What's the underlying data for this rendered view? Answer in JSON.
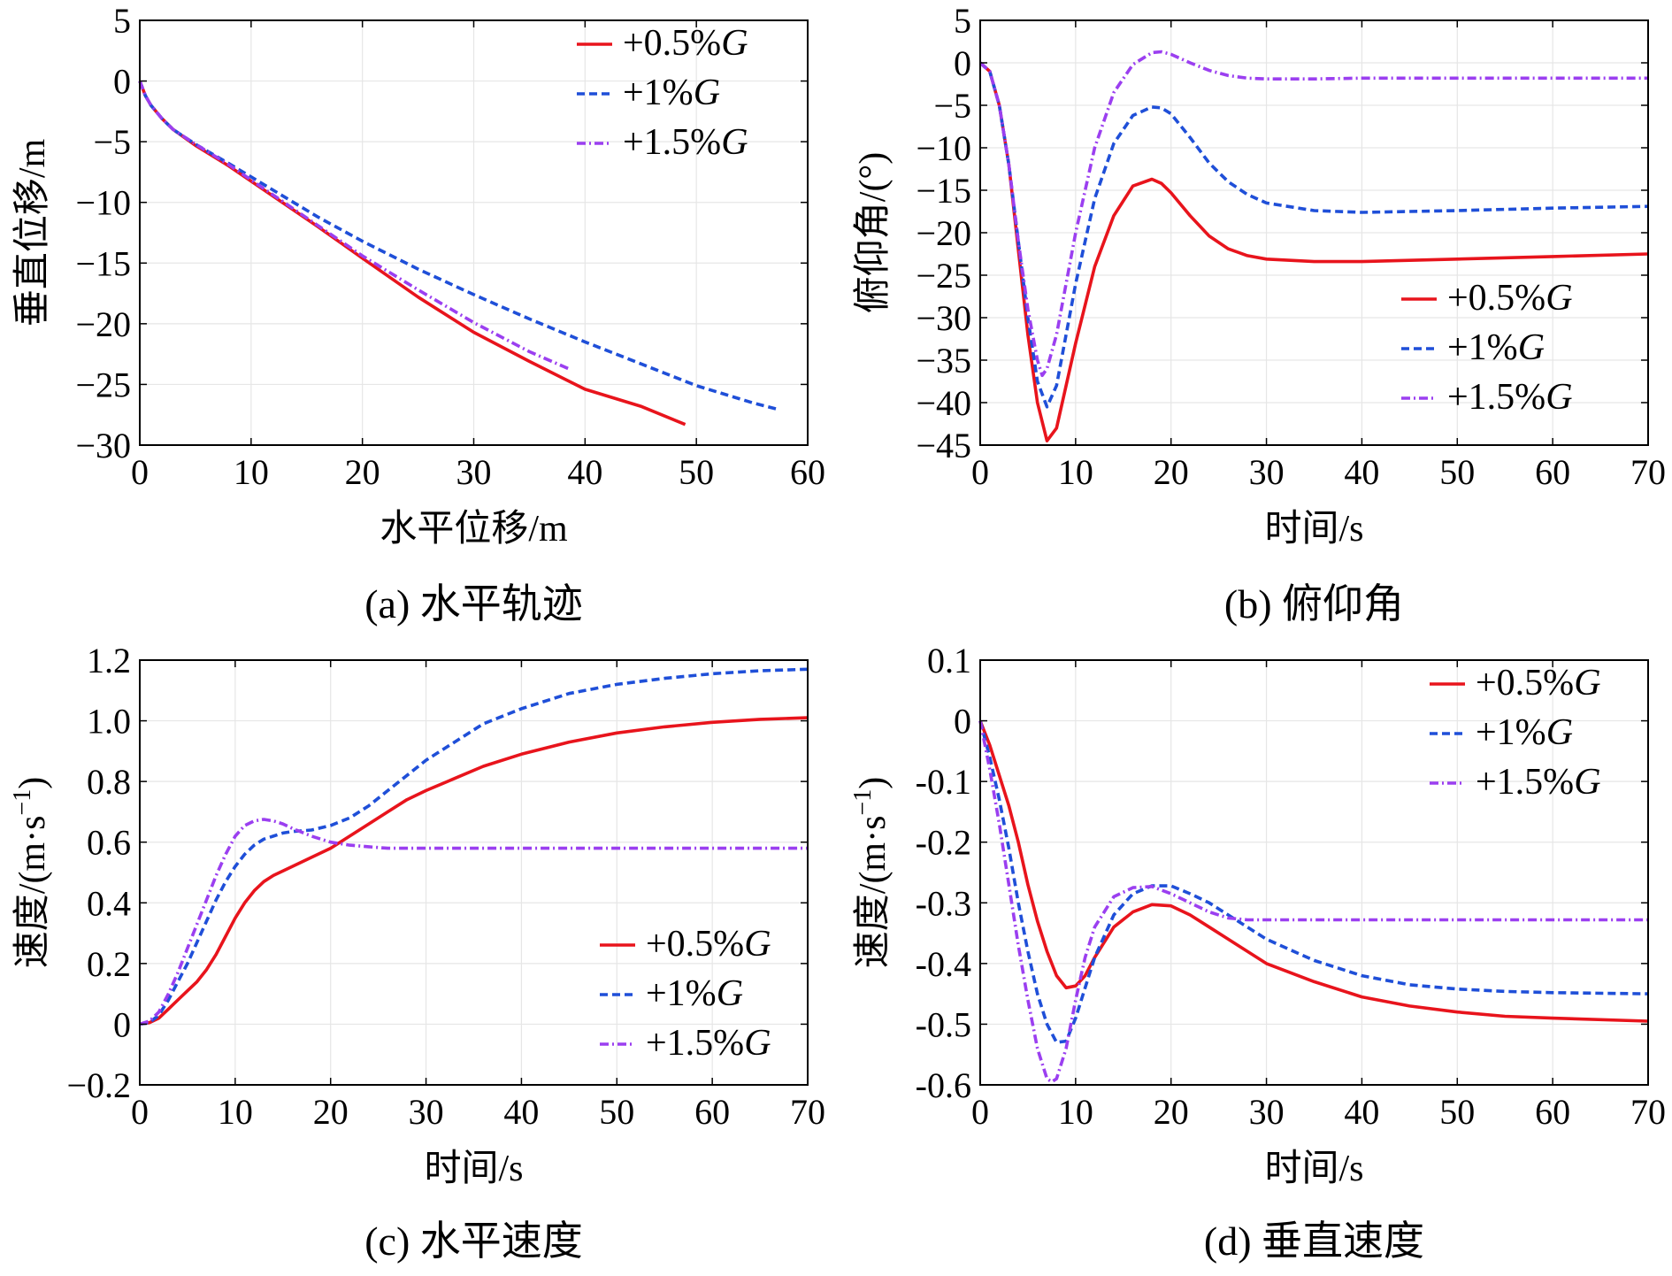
{
  "series_styles": {
    "s05": {
      "label": "+0.5%G",
      "color": "#e8141c"
    },
    "s1": {
      "label": "+1%G",
      "color": "#1f4fd8"
    },
    "s15": {
      "label": "+1.5%G",
      "color": "#9b3ff0"
    }
  },
  "chart_data": [
    {
      "id": "a",
      "type": "line",
      "caption": "(a) 水平轨迹",
      "xlabel": "水平位移/m",
      "ylabel": "垂直位移/m",
      "xlim": [
        0,
        60
      ],
      "ylim": [
        -30,
        5
      ],
      "xticks": [
        0,
        10,
        20,
        30,
        40,
        50,
        60
      ],
      "xtick_labels": [
        "0",
        "10",
        "20",
        "30",
        "40",
        "50",
        "60"
      ],
      "yticks": [
        5,
        0,
        -5,
        -10,
        -15,
        -20,
        -25,
        -30
      ],
      "ytick_labels": [
        "5",
        "0",
        "−5",
        "−10",
        "−15",
        "−20",
        "−25",
        "−30"
      ],
      "legend_position": "top-right",
      "series": [
        {
          "key": "s05",
          "name": "+0.5%G",
          "x": [
            0,
            0.5,
            1,
            2,
            3,
            5,
            8,
            12,
            16,
            20,
            25,
            30,
            35,
            40,
            45,
            49
          ],
          "y": [
            0,
            -1.2,
            -2,
            -3.1,
            -4,
            -5.3,
            -7,
            -9.5,
            -12,
            -14.6,
            -17.8,
            -20.7,
            -23.1,
            -25.4,
            -26.8,
            -28.3
          ]
        },
        {
          "key": "s1",
          "name": "+1%G",
          "x": [
            0,
            0.5,
            1,
            2,
            3,
            5,
            8,
            12,
            16,
            20,
            25,
            30,
            35,
            40,
            45,
            50,
            55,
            57.5
          ],
          "y": [
            0,
            -1.2,
            -2,
            -3.1,
            -4,
            -5.2,
            -6.8,
            -9,
            -11.2,
            -13.2,
            -15.5,
            -17.6,
            -19.6,
            -21.5,
            -23.3,
            -25.1,
            -26.5,
            -27.1
          ]
        },
        {
          "key": "s15",
          "name": "+1.5%G",
          "x": [
            0,
            0.5,
            1,
            2,
            3,
            5,
            8,
            12,
            16,
            20,
            25,
            30,
            35,
            38.5
          ],
          "y": [
            0,
            -1.2,
            -2,
            -3.1,
            -4,
            -5.2,
            -6.9,
            -9.4,
            -11.9,
            -14.4,
            -17.2,
            -19.9,
            -22.3,
            -23.7
          ]
        }
      ]
    },
    {
      "id": "b",
      "type": "line",
      "caption": "(b) 俯仰角",
      "xlabel": "时间/s",
      "ylabel": "俯仰角/(°)",
      "xlim": [
        0,
        70
      ],
      "ylim": [
        -45,
        5
      ],
      "xticks": [
        0,
        10,
        20,
        30,
        40,
        50,
        60,
        70
      ],
      "xtick_labels": [
        "0",
        "10",
        "20",
        "30",
        "40",
        "50",
        "60",
        "70"
      ],
      "yticks": [
        5,
        0,
        -5,
        -10,
        -15,
        -20,
        -25,
        -30,
        -35,
        -40,
        -45
      ],
      "ytick_labels": [
        "5",
        "0",
        "−5",
        "−10",
        "−15",
        "−20",
        "−25",
        "−30",
        "−35",
        "−40",
        "−45"
      ],
      "legend_position": "bottom-right",
      "series": [
        {
          "key": "s05",
          "name": "+0.5%G",
          "x": [
            0,
            1,
            2,
            3,
            4,
            5,
            6,
            7,
            8,
            9,
            10,
            12,
            14,
            16,
            18,
            19,
            20,
            22,
            24,
            26,
            28,
            30,
            35,
            40,
            50,
            60,
            70
          ],
          "y": [
            0,
            -1,
            -5,
            -12,
            -22,
            -32,
            -40,
            -44.5,
            -43,
            -38,
            -33,
            -24,
            -18,
            -14.5,
            -13.7,
            -14.2,
            -15.3,
            -18,
            -20.4,
            -21.9,
            -22.7,
            -23.1,
            -23.4,
            -23.4,
            -23.1,
            -22.8,
            -22.5
          ]
        },
        {
          "key": "s1",
          "name": "+1%G",
          "x": [
            0,
            1,
            2,
            3,
            4,
            5,
            6,
            7,
            8,
            9,
            10,
            12,
            14,
            16,
            18,
            19,
            20,
            22,
            24,
            26,
            28,
            30,
            35,
            40,
            50,
            60,
            70
          ],
          "y": [
            0,
            -1,
            -5,
            -12,
            -21,
            -30,
            -37.5,
            -40.5,
            -38,
            -32,
            -26,
            -16,
            -9.5,
            -6.2,
            -5.2,
            -5.3,
            -6,
            -8.8,
            -11.8,
            -14,
            -15.5,
            -16.5,
            -17.4,
            -17.6,
            -17.4,
            -17.1,
            -16.9
          ]
        },
        {
          "key": "s15",
          "name": "+1.5%G",
          "x": [
            0,
            1,
            2,
            3,
            4,
            5,
            6,
            6.5,
            7,
            8,
            9,
            10,
            12,
            14,
            16,
            18,
            19,
            20,
            22,
            24,
            26,
            28,
            30,
            35,
            40,
            50,
            60,
            70
          ],
          "y": [
            0,
            -1,
            -5,
            -12,
            -21,
            -29,
            -35,
            -36.8,
            -36,
            -32,
            -26,
            -20,
            -10,
            -3.5,
            -0.2,
            1.2,
            1.3,
            1,
            0,
            -0.9,
            -1.5,
            -1.8,
            -1.9,
            -1.9,
            -1.8,
            -1.8,
            -1.8,
            -1.8
          ]
        }
      ]
    },
    {
      "id": "c",
      "type": "line",
      "caption": "(c) 水平速度",
      "xlabel": "时间/s",
      "ylabel": "速度/(m·s",
      "ylabel_sup": "−1",
      "ylabel_end": ")",
      "xlim": [
        0,
        70
      ],
      "ylim": [
        -0.2,
        1.2
      ],
      "xticks": [
        0,
        10,
        20,
        30,
        40,
        50,
        60,
        70
      ],
      "xtick_labels": [
        "0",
        "10",
        "20",
        "30",
        "40",
        "50",
        "60",
        "70"
      ],
      "yticks": [
        1.2,
        1.0,
        0.8,
        0.6,
        0.4,
        0.2,
        0,
        -0.2
      ],
      "ytick_labels": [
        "1.2",
        "1.0",
        "0.8",
        "0.6",
        "0.4",
        "0.2",
        "0",
        "−0.2"
      ],
      "legend_position": "bottom-right",
      "series": [
        {
          "key": "s05",
          "name": "+0.5%G",
          "x": [
            0,
            1,
            2,
            3,
            4,
            5,
            6,
            7,
            8,
            9,
            10,
            11,
            12,
            13,
            14,
            15,
            16,
            18,
            20,
            22,
            24,
            26,
            28,
            30,
            33,
            36,
            40,
            45,
            50,
            55,
            60,
            65,
            70
          ],
          "y": [
            0,
            0.005,
            0.02,
            0.05,
            0.08,
            0.11,
            0.14,
            0.18,
            0.23,
            0.29,
            0.35,
            0.4,
            0.44,
            0.47,
            0.49,
            0.505,
            0.52,
            0.55,
            0.58,
            0.62,
            0.66,
            0.7,
            0.74,
            0.77,
            0.81,
            0.85,
            0.89,
            0.93,
            0.96,
            0.98,
            0.995,
            1.005,
            1.01
          ]
        },
        {
          "key": "s1",
          "name": "+1%G",
          "x": [
            0,
            1,
            2,
            3,
            4,
            5,
            6,
            7,
            8,
            9,
            10,
            11,
            12,
            13,
            14,
            15,
            16,
            18,
            20,
            22,
            24,
            26,
            28,
            30,
            33,
            36,
            40,
            45,
            50,
            55,
            60,
            65,
            70
          ],
          "y": [
            0,
            0.005,
            0.03,
            0.08,
            0.14,
            0.2,
            0.27,
            0.34,
            0.41,
            0.47,
            0.52,
            0.56,
            0.59,
            0.61,
            0.62,
            0.63,
            0.635,
            0.64,
            0.655,
            0.68,
            0.72,
            0.77,
            0.82,
            0.87,
            0.93,
            0.99,
            1.04,
            1.09,
            1.12,
            1.14,
            1.155,
            1.165,
            1.17
          ]
        },
        {
          "key": "s15",
          "name": "+1.5%G",
          "x": [
            0,
            1,
            2,
            3,
            4,
            5,
            6,
            7,
            8,
            9,
            10,
            11,
            12,
            13,
            14,
            15,
            16,
            18,
            20,
            22,
            24,
            26,
            28,
            30,
            35,
            40,
            50,
            60,
            70
          ],
          "y": [
            0,
            0.01,
            0.04,
            0.1,
            0.17,
            0.25,
            0.33,
            0.41,
            0.49,
            0.56,
            0.62,
            0.655,
            0.67,
            0.675,
            0.67,
            0.66,
            0.645,
            0.62,
            0.6,
            0.59,
            0.585,
            0.58,
            0.58,
            0.58,
            0.58,
            0.58,
            0.58,
            0.58,
            0.58
          ]
        }
      ]
    },
    {
      "id": "d",
      "type": "line",
      "caption": "(d) 垂直速度",
      "xlabel": "时间/s",
      "ylabel": "速度/(m·s",
      "ylabel_sup": "−1",
      "ylabel_end": ")",
      "xlim": [
        0,
        70
      ],
      "ylim": [
        -0.6,
        0.1
      ],
      "xticks": [
        0,
        10,
        20,
        30,
        40,
        50,
        60,
        70
      ],
      "xtick_labels": [
        "0",
        "10",
        "20",
        "30",
        "40",
        "50",
        "60",
        "70"
      ],
      "yticks": [
        0.1,
        0,
        -0.1,
        -0.2,
        -0.3,
        -0.4,
        -0.5,
        -0.6
      ],
      "ytick_labels": [
        "0.1",
        "0",
        "-0.1",
        "-0.2",
        "-0.3",
        "-0.4",
        "-0.5",
        "-0.6"
      ],
      "legend_position": "top-right",
      "series": [
        {
          "key": "s05",
          "name": "+0.5%G",
          "x": [
            0,
            1,
            2,
            3,
            4,
            5,
            6,
            7,
            8,
            9,
            10,
            11,
            12,
            14,
            16,
            18,
            20,
            22,
            24,
            26,
            28,
            30,
            35,
            40,
            45,
            50,
            55,
            60,
            70
          ],
          "y": [
            0,
            -0.04,
            -0.09,
            -0.14,
            -0.2,
            -0.27,
            -0.33,
            -0.38,
            -0.42,
            -0.44,
            -0.437,
            -0.42,
            -0.39,
            -0.34,
            -0.315,
            -0.303,
            -0.305,
            -0.32,
            -0.34,
            -0.36,
            -0.38,
            -0.4,
            -0.43,
            -0.455,
            -0.47,
            -0.48,
            -0.487,
            -0.49,
            -0.495
          ]
        },
        {
          "key": "s1",
          "name": "+1%G",
          "x": [
            0,
            1,
            2,
            3,
            4,
            5,
            6,
            7,
            8,
            9,
            10,
            11,
            12,
            14,
            16,
            18,
            20,
            22,
            24,
            26,
            28,
            30,
            35,
            40,
            45,
            50,
            55,
            60,
            70
          ],
          "y": [
            0,
            -0.06,
            -0.13,
            -0.21,
            -0.3,
            -0.38,
            -0.45,
            -0.5,
            -0.53,
            -0.528,
            -0.49,
            -0.44,
            -0.39,
            -0.32,
            -0.285,
            -0.272,
            -0.272,
            -0.285,
            -0.3,
            -0.32,
            -0.34,
            -0.36,
            -0.395,
            -0.42,
            -0.435,
            -0.442,
            -0.446,
            -0.448,
            -0.45
          ]
        },
        {
          "key": "s15",
          "name": "+1.5%G",
          "x": [
            0,
            1,
            2,
            3,
            4,
            5,
            6,
            7,
            7.5,
            8,
            9,
            10,
            11,
            12,
            14,
            16,
            18,
            20,
            22,
            24,
            26,
            28,
            30,
            35,
            40,
            50,
            60,
            70
          ],
          "y": [
            0,
            -0.08,
            -0.17,
            -0.27,
            -0.37,
            -0.46,
            -0.54,
            -0.59,
            -0.595,
            -0.59,
            -0.54,
            -0.46,
            -0.39,
            -0.34,
            -0.29,
            -0.275,
            -0.273,
            -0.285,
            -0.3,
            -0.315,
            -0.325,
            -0.328,
            -0.328,
            -0.328,
            -0.328,
            -0.328,
            -0.328,
            -0.328
          ]
        }
      ]
    }
  ]
}
